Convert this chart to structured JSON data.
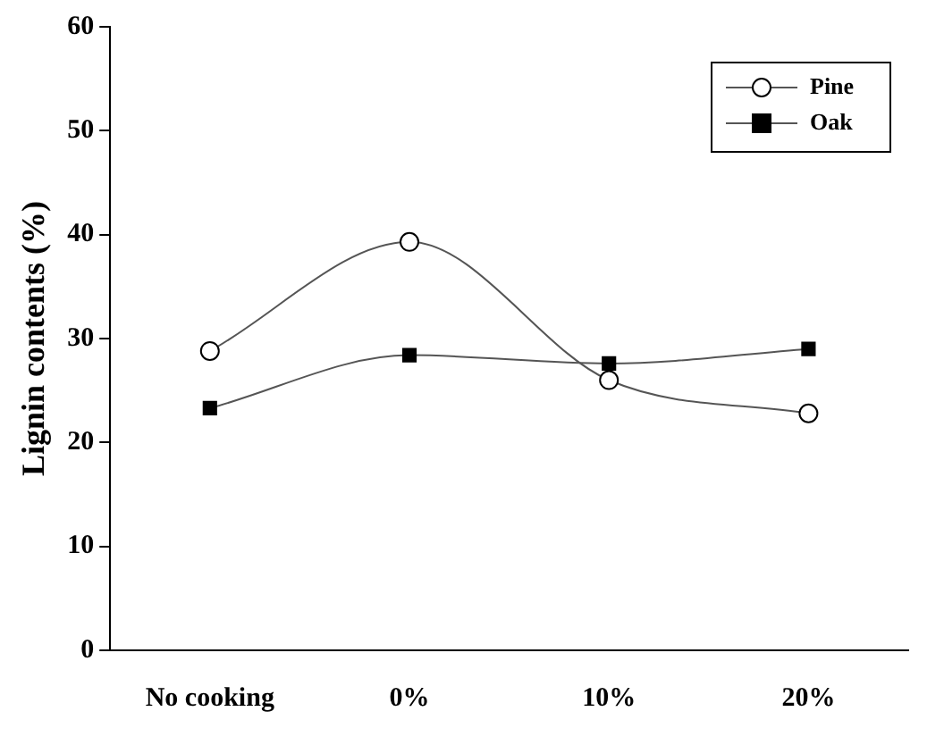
{
  "chart_data": {
    "type": "line",
    "ylabel": "Lignin contents (%)",
    "categories": [
      "No cooking",
      "0%",
      "10%",
      "20%"
    ],
    "series": [
      {
        "name": "Pine",
        "color": "#000000",
        "values": [
          28.8,
          39.3,
          26.0,
          22.8
        ],
        "marker": "circle"
      },
      {
        "name": "Oak",
        "color": "#000000",
        "values": [
          23.3,
          28.4,
          27.6,
          29.0
        ],
        "marker": "square"
      }
    ],
    "ylim": [
      0,
      60
    ],
    "yticks": [
      0,
      10,
      20,
      30,
      40,
      50,
      60
    ],
    "grid": false,
    "legend": "top right"
  }
}
